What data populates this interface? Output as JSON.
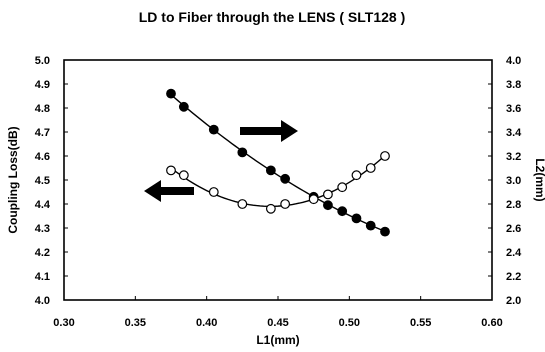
{
  "chart_data": {
    "type": "scatter",
    "title": "LD to Fiber through the LENS ( SLT128 )",
    "xlabel": "L1(mm)",
    "ylabel": "Coupling Loss(dB)",
    "y2label": "L2(mm)",
    "xlim": [
      0.3,
      0.6
    ],
    "ylim": [
      4.0,
      5.0
    ],
    "y2lim": [
      2.0,
      4.0
    ],
    "x_ticks": [
      "0.30",
      "0.35",
      "0.40",
      "0.45",
      "0.50",
      "0.55",
      "0.60"
    ],
    "y_ticks": [
      "4.0",
      "4.1",
      "4.2",
      "4.3",
      "4.4",
      "4.5",
      "4.6",
      "4.7",
      "4.8",
      "4.9",
      "5.0"
    ],
    "y2_ticks": [
      "2.0",
      "2.2",
      "2.4",
      "2.6",
      "2.8",
      "3.0",
      "3.2",
      "3.4",
      "3.6",
      "3.8",
      "4.0"
    ],
    "grid": false,
    "series": [
      {
        "axis": "right",
        "marker": "filled-circle",
        "x": [
          0.375,
          0.384,
          0.405,
          0.425,
          0.445,
          0.455,
          0.475,
          0.485,
          0.495,
          0.505,
          0.515,
          0.525
        ],
        "y": [
          3.72,
          3.61,
          3.42,
          3.23,
          3.08,
          3.01,
          2.86,
          2.79,
          2.74,
          2.68,
          2.62,
          2.57
        ]
      },
      {
        "axis": "left",
        "marker": "open-circle",
        "x": [
          0.375,
          0.384,
          0.405,
          0.425,
          0.445,
          0.455,
          0.475,
          0.485,
          0.495,
          0.505,
          0.515,
          0.525
        ],
        "y": [
          4.54,
          4.52,
          4.45,
          4.4,
          4.38,
          4.4,
          4.42,
          4.44,
          4.47,
          4.52,
          4.55,
          4.6
        ]
      }
    ],
    "annotations": [
      {
        "type": "arrow",
        "direction": "right",
        "points_to": "right-axis"
      },
      {
        "type": "arrow",
        "direction": "left",
        "points_to": "left-axis"
      }
    ]
  }
}
